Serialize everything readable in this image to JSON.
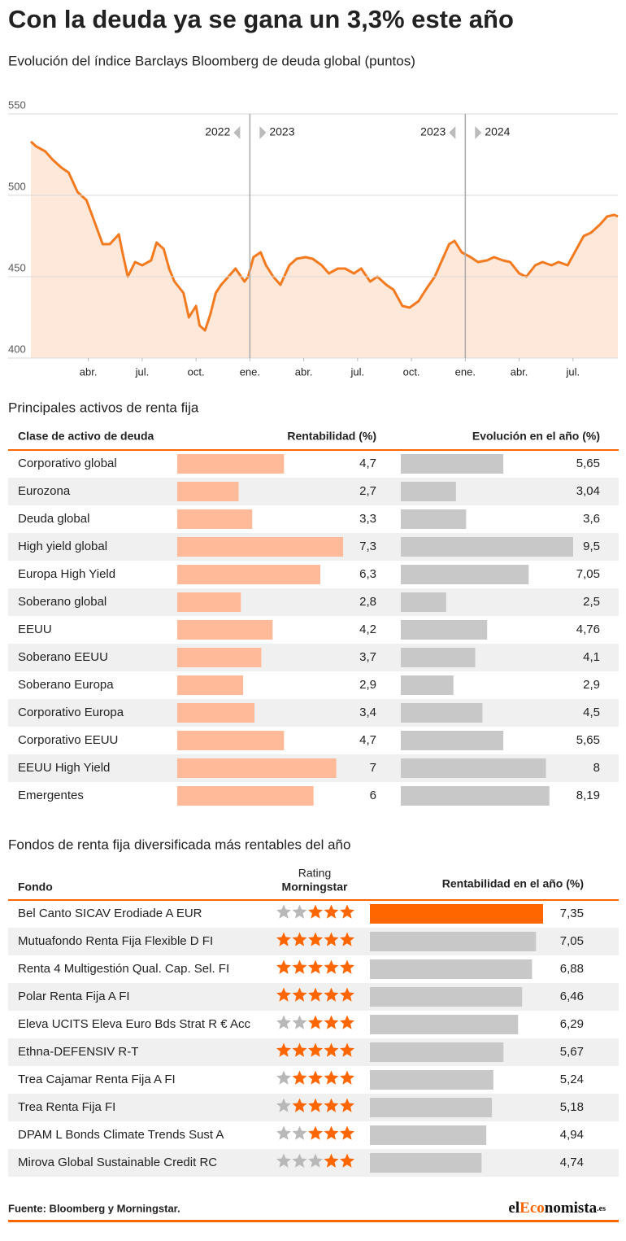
{
  "title": "Con la deuda ya se gana un 3,3% este año",
  "chart_data": {
    "type": "line",
    "subtitle": "Evolución del índice Barclays Bloomberg de deuda global (puntos)",
    "x": [
      -0.2,
      0.1,
      0.6,
      1.0,
      1.5,
      1.9,
      2.4,
      2.9,
      3.3,
      3.8,
      4.2,
      4.7,
      4.9,
      5.2,
      5.6,
      6.0,
      6.5,
      6.8,
      7.2,
      7.5,
      7.8,
      8.3,
      8.6,
      9.0,
      9.2,
      9.5,
      9.8,
      10.1,
      10.4,
      10.8,
      11.2,
      11.7,
      11.9,
      12.2,
      12.6,
      12.9,
      13.3,
      13.7,
      14.2,
      14.6,
      15.1,
      15.5,
      16.0,
      16.4,
      16.9,
      17.3,
      17.8,
      18.2,
      18.7,
      19.1,
      19.6,
      20.0,
      20.5,
      20.9,
      21.4,
      21.8,
      22.3,
      22.7,
      23.1,
      23.4,
      23.8,
      24.3,
      24.7,
      25.2,
      25.6,
      26.1,
      26.5,
      27.0,
      27.4,
      27.9,
      28.3,
      28.8,
      29.2,
      29.7,
      30.1,
      30.6,
      31.0,
      31.5,
      31.9,
      32.3,
      32.5
    ],
    "series": [
      {
        "name": "Barclays Bloomberg deuda global",
        "color": "#f47a20",
        "fill": "#fde8da",
        "values": [
          533,
          530,
          527,
          522,
          517,
          514,
          502,
          497,
          485,
          470,
          470,
          476,
          465,
          450,
          459,
          457,
          460,
          471,
          467,
          455,
          447,
          440,
          425,
          432,
          420,
          417,
          427,
          440,
          445,
          450,
          455,
          447,
          450,
          462,
          465,
          457,
          450,
          445,
          457,
          461,
          462,
          461,
          457,
          452,
          455,
          455,
          452,
          455,
          447,
          450,
          445,
          442,
          432,
          431,
          435,
          442,
          450,
          460,
          470,
          472,
          465,
          462,
          459,
          460,
          462,
          460,
          459,
          452,
          450,
          457,
          459,
          457,
          459,
          457,
          465,
          475,
          477,
          482,
          487,
          488,
          487
        ]
      }
    ],
    "xlim": [
      -0.2,
      32.5
    ],
    "xticks": [
      {
        "value": 3,
        "label": "abr."
      },
      {
        "value": 6,
        "label": "jul."
      },
      {
        "value": 9,
        "label": "oct."
      },
      {
        "value": 12,
        "label": "ene."
      },
      {
        "value": 15,
        "label": "abr."
      },
      {
        "value": 18,
        "label": "jul."
      },
      {
        "value": 21,
        "label": "oct."
      },
      {
        "value": 24,
        "label": "ene."
      },
      {
        "value": 27,
        "label": "abr."
      },
      {
        "value": 30,
        "label": "jul."
      }
    ],
    "ylim": [
      400,
      550
    ],
    "yticks": [
      400,
      450,
      500,
      550
    ],
    "grid": true,
    "year_markers": [
      {
        "x": 12,
        "before": "2022",
        "after": "2023"
      },
      {
        "x": 24,
        "before": "2023",
        "after": "2024"
      }
    ]
  },
  "assets_table": {
    "title": "Principales activos de renta fija",
    "header": "Clase de activo de deuda",
    "categories": [
      "Corporativo global",
      "Eurozona",
      "Deuda global",
      "High yield global",
      "Europa High Yield",
      "Soberano global",
      "EEUU",
      "Soberano EEUU",
      "Soberano Europa",
      "Corporativo Europa",
      "Corporativo EEUU",
      "EEUU High Yield",
      "Emergentes"
    ],
    "columns": [
      {
        "name": "Rentabilidad (%)",
        "color": "#ffbb99",
        "values": [
          4.7,
          2.7,
          3.3,
          7.3,
          6.3,
          2.8,
          4.2,
          3.7,
          2.9,
          3.4,
          4.7,
          7,
          6
        ],
        "value_labels": [
          "4,7",
          "2,7",
          "3,3",
          "7,3",
          "6,3",
          "2,8",
          "4,2",
          "3,7",
          "2,9",
          "3,4",
          "4,7",
          "7",
          "6"
        ]
      },
      {
        "name": "Evolución en el año (%)",
        "color": "#c8c8c8",
        "values": [
          5.65,
          3.04,
          3.6,
          9.5,
          7.05,
          2.5,
          4.76,
          4.1,
          2.9,
          4.5,
          5.65,
          8,
          8.19
        ],
        "value_labels": [
          "5,65",
          "3,04",
          "3,6",
          "9,5",
          "7,05",
          "2,5",
          "4,76",
          "4,1",
          "2,9",
          "4,5",
          "5,65",
          "8",
          "8,19"
        ]
      }
    ]
  },
  "funds_table": {
    "title": "Fondos de renta fija diversificada más rentables del año",
    "header_fund": "Fondo",
    "header_rating": [
      "Rating",
      "Morningstar"
    ],
    "header_return": "Rentabilidad en el año (%)",
    "funds": [
      "Bel Canto SICAV Erodiade A EUR",
      "Mutuafondo Renta Fija Flexible D FI",
      "Renta 4 Multigestión Qual. Cap. Sel. FI",
      "Polar Renta Fija A FI",
      "Eleva UCITS Eleva Euro Bds Strat R € Acc",
      "Ethna-DEFENSIV R-T",
      "Trea Cajamar Renta Fija A FI",
      "Trea Renta Fija FI",
      "DPAM L Bonds Climate Trends Sust A",
      "Mirova Global Sustainable Credit RC"
    ],
    "ratings": [
      3,
      5,
      5,
      5,
      3,
      5,
      4,
      4,
      3,
      2
    ],
    "rating_scale": 5,
    "star_color": "#ff6600",
    "empty_star_color": "#b8b8b8",
    "returns": {
      "values": [
        7.35,
        7.05,
        6.88,
        6.46,
        6.29,
        5.67,
        5.24,
        5.18,
        4.94,
        4.74
      ],
      "value_labels": [
        "7,35",
        "7,05",
        "6,88",
        "6,46",
        "6,29",
        "5,67",
        "5,24",
        "5,18",
        "4,94",
        "4,74"
      ],
      "colors": [
        "#ff6600",
        "#c8c8c8",
        "#c8c8c8",
        "#c8c8c8",
        "#c8c8c8",
        "#c8c8c8",
        "#c8c8c8",
        "#c8c8c8",
        "#c8c8c8",
        "#c8c8c8"
      ]
    }
  },
  "source": "Fuente: Bloomberg y Morningstar.",
  "logo": {
    "part1": "el",
    "part2": "Eco",
    "part3": "nomista",
    "part4": ".es"
  }
}
